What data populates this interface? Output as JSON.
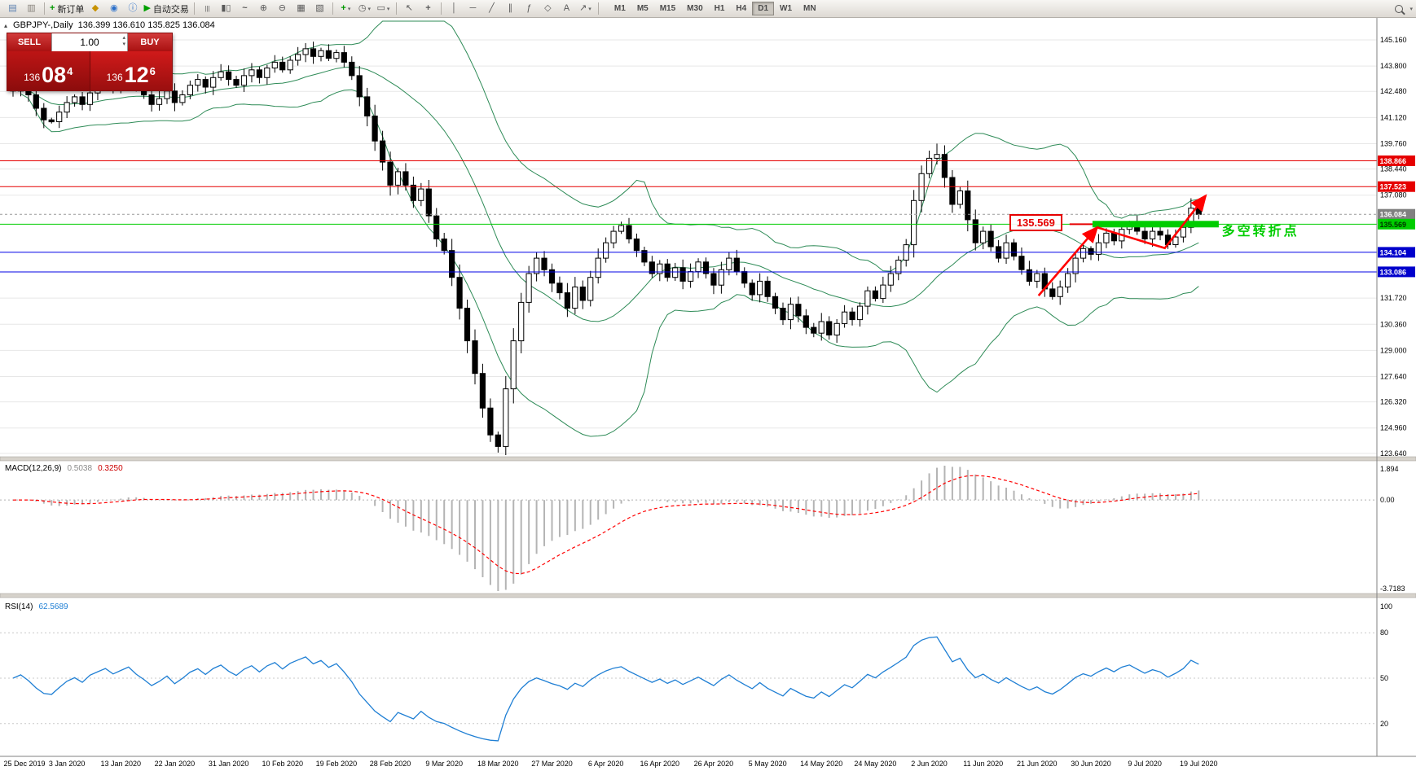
{
  "toolbar": {
    "groups": [
      {
        "items": [
          {
            "name": "new-chart-button",
            "glyph": "▤",
            "color": "#5a7fae"
          },
          {
            "name": "profiles-button",
            "glyph": "▥",
            "color": "#87837c"
          }
        ]
      },
      {
        "sep": true
      },
      {
        "items": [
          {
            "name": "new-order-button",
            "glyph": "+",
            "color": "#009900",
            "bold": true,
            "label": "新订单"
          }
        ]
      },
      {
        "items": [
          {
            "name": "market-watch-button",
            "glyph": "◆",
            "color": "#c79200"
          },
          {
            "name": "navigator-button",
            "glyph": "◉",
            "color": "#2a6fc9"
          },
          {
            "name": "terminal-button",
            "glyph": "ⓘ",
            "color": "#2a6fc9"
          }
        ]
      },
      {
        "items": [
          {
            "name": "autotrading-button",
            "glyph": "▶",
            "color": "#00a000",
            "label": "自动交易"
          }
        ]
      },
      {
        "sep": true
      },
      {
        "items": [
          {
            "name": "bars-chart-button",
            "glyph": "|||"
          },
          {
            "name": "candlestick-chart-button",
            "glyph": "▮▯"
          },
          {
            "name": "line-chart-button",
            "glyph": "~",
            "bold": true
          }
        ]
      },
      {
        "items": [
          {
            "name": "zoom-in-button",
            "glyph": "⊕"
          },
          {
            "name": "zoom-out-button",
            "glyph": "⊖"
          }
        ]
      },
      {
        "items": [
          {
            "name": "tile-windows-button",
            "glyph": "▦"
          },
          {
            "name": "auto-arrange-button",
            "glyph": "▧"
          }
        ]
      },
      {
        "sep": true
      },
      {
        "items": [
          {
            "name": "indicators-button",
            "glyph": "+",
            "color": "#009900",
            "bold": true,
            "caret": true
          },
          {
            "name": "periods-button",
            "glyph": "◷",
            "caret": true
          },
          {
            "name": "templates-button",
            "glyph": "▭",
            "caret": true
          }
        ]
      },
      {
        "sep": true
      },
      {
        "items": [
          {
            "name": "cursor-button",
            "glyph": "↖"
          },
          {
            "name": "crosshair-button",
            "glyph": "+",
            "bold": true
          }
        ]
      },
      {
        "sep": true
      },
      {
        "items": [
          {
            "name": "vertical-line-button",
            "glyph": "│"
          },
          {
            "name": "horizontal-line-button",
            "glyph": "─"
          },
          {
            "name": "trendline-button",
            "glyph": "╱"
          },
          {
            "name": "channel-button",
            "glyph": "∥"
          },
          {
            "name": "fibonacci-button",
            "glyph": "ƒ"
          },
          {
            "name": "shapes-button",
            "glyph": "◇"
          },
          {
            "name": "text-button",
            "glyph": "A"
          },
          {
            "name": "arrows-button",
            "glyph": "↗",
            "caret": true
          }
        ]
      },
      {
        "sep": true
      }
    ],
    "timeframes": [
      "M1",
      "M5",
      "M15",
      "M30",
      "H1",
      "H4",
      "D1",
      "W1",
      "MN"
    ],
    "active_timeframe": "D1"
  },
  "chart": {
    "symbol_period": "GBPJPY-,Daily",
    "ohlc_line": "136.399 136.610 135.825 136.084"
  },
  "trade_panel": {
    "sell_label": "SELL",
    "buy_label": "BUY",
    "lot_value": "1.00",
    "sell_price": {
      "prefix": "136",
      "big": "08",
      "sup": "4"
    },
    "buy_price": {
      "prefix": "136",
      "big": "12",
      "sup": "6"
    }
  },
  "levels": [
    {
      "value": 138.866,
      "label": "138.866",
      "line": "#E60000",
      "tag_bg": "#E60000",
      "tag_fg": "#ffffff",
      "style": "solid"
    },
    {
      "value": 137.523,
      "label": "137.523",
      "line": "#E60000",
      "tag_bg": "#E60000",
      "tag_fg": "#ffffff",
      "style": "solid"
    },
    {
      "value": 136.084,
      "label": "136.084",
      "line": "#9a9a9a",
      "tag_bg": "#808080",
      "tag_fg": "#ffffff",
      "style": "dash"
    },
    {
      "value": 135.569,
      "label": "135.569",
      "line": "#00CD00",
      "tag_bg": "#00CD00",
      "tag_fg": "#003300",
      "style": "solid"
    },
    {
      "value": 134.104,
      "label": "134.104",
      "line": "#0000E6",
      "tag_bg": "#0000CC",
      "tag_fg": "#ffffff",
      "style": "solid"
    },
    {
      "value": 133.086,
      "label": "133.086",
      "line": "#0000E6",
      "tag_bg": "#0000CC",
      "tag_fg": "#ffffff",
      "style": "solid"
    }
  ],
  "annotations": {
    "price_label": {
      "text": "135.569",
      "price": 135.569,
      "bar_left": 129.4,
      "dash_to_bar": 140.2
    },
    "cn_note": {
      "text": "多空转折点",
      "bar": 157.0,
      "price": 135.32
    },
    "green_band": {
      "price": 135.569,
      "bar_start": 140.2,
      "bar_end": 156.6,
      "thickness": 8
    },
    "arrows": [
      {
        "points": [
          [
            133.2,
            131.85
          ],
          [
            140.8,
            135.4
          ]
        ]
      },
      {
        "points": [
          [
            140.8,
            135.4
          ],
          [
            149.6,
            134.32
          ],
          [
            154.9,
            137.05
          ]
        ]
      }
    ]
  },
  "chart_data": {
    "type": "candlestick",
    "symbol": "GBPJPY-",
    "timeframe": "Daily",
    "last_candle": {
      "open": 136.399,
      "high": 136.61,
      "low": 135.825,
      "close": 136.084
    },
    "closes": [
      142.5,
      142.8,
      142.3,
      141.6,
      141.0,
      140.9,
      141.4,
      141.9,
      142.2,
      141.8,
      142.4,
      142.7,
      143.0,
      142.6,
      142.9,
      143.2,
      142.7,
      142.3,
      141.8,
      142.1,
      142.5,
      141.9,
      142.3,
      142.8,
      143.1,
      142.7,
      143.2,
      143.5,
      143.1,
      142.8,
      143.3,
      143.6,
      143.2,
      143.7,
      144.0,
      143.6,
      144.1,
      144.4,
      144.7,
      144.3,
      144.6,
      144.2,
      144.5,
      144.0,
      143.3,
      142.2,
      141.2,
      139.9,
      138.8,
      137.6,
      138.3,
      137.6,
      136.8,
      137.4,
      136.0,
      134.8,
      134.2,
      132.8,
      131.2,
      129.5,
      127.8,
      126.0,
      124.6,
      124.0,
      127.0,
      129.5,
      131.5,
      133.0,
      133.8,
      133.2,
      132.5,
      132.0,
      131.2,
      132.3,
      131.6,
      132.8,
      133.8,
      134.6,
      135.2,
      135.5,
      134.8,
      134.2,
      133.6,
      133.0,
      133.5,
      132.8,
      133.3,
      132.6,
      133.1,
      133.6,
      133.0,
      132.4,
      133.2,
      133.8,
      133.1,
      132.5,
      131.9,
      132.6,
      131.8,
      131.2,
      130.6,
      131.4,
      130.8,
      130.2,
      129.9,
      130.5,
      129.8,
      130.4,
      131.0,
      130.6,
      131.3,
      132.1,
      131.7,
      132.4,
      133.0,
      133.7,
      134.5,
      136.8,
      138.2,
      139.0,
      139.2,
      138.0,
      136.6,
      137.3,
      135.8,
      134.6,
      135.2,
      134.4,
      133.8,
      134.6,
      133.9,
      133.2,
      132.6,
      133.0,
      132.2,
      131.8,
      132.3,
      133.0,
      133.8,
      134.3,
      134.0,
      134.6,
      135.1,
      134.7,
      135.3,
      135.6,
      135.2,
      134.8,
      135.2,
      135.0,
      134.5,
      134.9,
      135.4,
      136.4,
      136.08
    ],
    "open_overrides": {
      "154": 136.399
    },
    "high_overrides": {
      "120": 139.76,
      "153": 136.92,
      "154": 136.61
    },
    "low_overrides": {
      "63": 123.68,
      "150": 134.28,
      "154": 135.825
    },
    "label_every_bars": 7,
    "date_labels": [
      "25 Dec 2019",
      "3 Jan 2020",
      "13 Jan 2020",
      "22 Jan 2020",
      "31 Jan 2020",
      "10 Feb 2020",
      "19 Feb 2020",
      "28 Feb 2020",
      "9 Mar 2020",
      "18 Mar 2020",
      "27 Mar 2020",
      "6 Apr 2020",
      "16 Apr 2020",
      "26 Apr 2020",
      "5 May 2020",
      "14 May 2020",
      "24 May 2020",
      "2 Jun 2020",
      "11 Jun 2020",
      "21 Jun 2020",
      "30 Jun 2020",
      "9 Jul 2020",
      "19 Jul 2020"
    ],
    "price_ticks": [
      145.16,
      143.8,
      142.48,
      141.12,
      139.76,
      138.44,
      137.08,
      131.72,
      130.36,
      129.0,
      127.64,
      126.32,
      124.96,
      123.64
    ],
    "indicators": {
      "bollinger": {
        "period": 20,
        "deviation": 2
      },
      "macd": {
        "name": "MACD(12,26,9)",
        "main_value": "0.5038",
        "signal_value": "0.3250",
        "axis_max": "1.894",
        "axis_zero": "0.00",
        "axis_min": "-3.7183"
      },
      "rsi": {
        "name": "RSI(14)",
        "value": "62.5689",
        "axis_labels": [
          "100",
          "80",
          "50",
          "20"
        ],
        "levels": [
          80,
          50,
          20
        ]
      }
    }
  },
  "colors": {
    "candle_up": "#FFFFFF",
    "candle_down": "#000000",
    "candle_border": "#000000",
    "bollinger": "#2E8B57",
    "macd_hist": "#B4B4B4",
    "macd_signal": "#FF0000",
    "rsi_line": "#1f7fd4",
    "grid": "#E7E7E7",
    "accent_red": "#E60000",
    "accent_green": "#00CD00",
    "arrow": "#FF0000"
  }
}
